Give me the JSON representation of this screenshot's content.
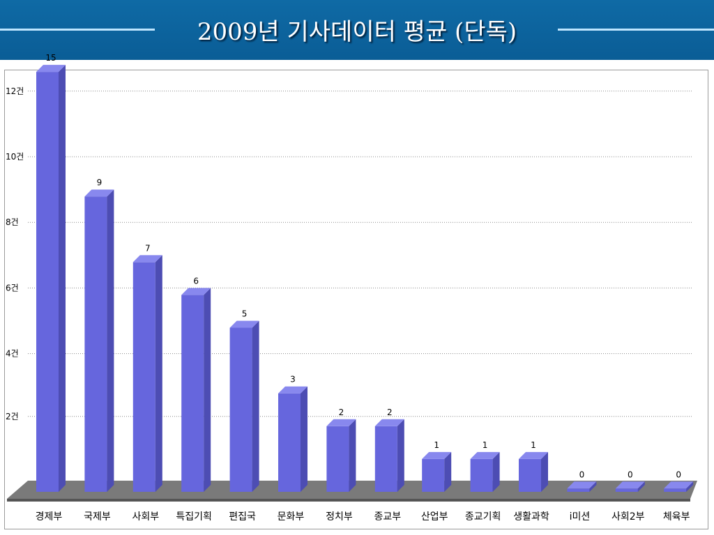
{
  "slide": {
    "title": "2009년 기사데이터 평균 (단독)"
  },
  "colors": {
    "header_bg": "#0a5d96",
    "bar_front": "#6666dd",
    "bar_side": "#4d4db3",
    "bar_top": "#8888ee",
    "floor": "#7a7a7a"
  },
  "chart_data": {
    "type": "bar",
    "title": "",
    "xlabel": "",
    "ylabel": "",
    "y_tick_labels": [
      "2건",
      "4건",
      "6건",
      "8건",
      "10건",
      "12건"
    ],
    "y_ticks": [
      2,
      4,
      6,
      8,
      10,
      12
    ],
    "ylim": [
      0,
      13
    ],
    "grid": true,
    "categories": [
      "경제부",
      "국제부",
      "사회부",
      "특집기획",
      "편집국",
      "문화부",
      "정치부",
      "종교부",
      "산업부",
      "종교기획",
      "생활과학",
      "i미션",
      "사회2부",
      "체육부"
    ],
    "values": [
      15,
      9,
      7,
      6,
      5,
      3,
      2,
      2,
      1,
      1,
      1,
      0,
      0,
      0
    ],
    "data_labels": [
      "15",
      "9",
      "7",
      "6",
      "5",
      "3",
      "2",
      "2",
      "1",
      "1",
      "1",
      "0",
      "0",
      "0"
    ]
  }
}
